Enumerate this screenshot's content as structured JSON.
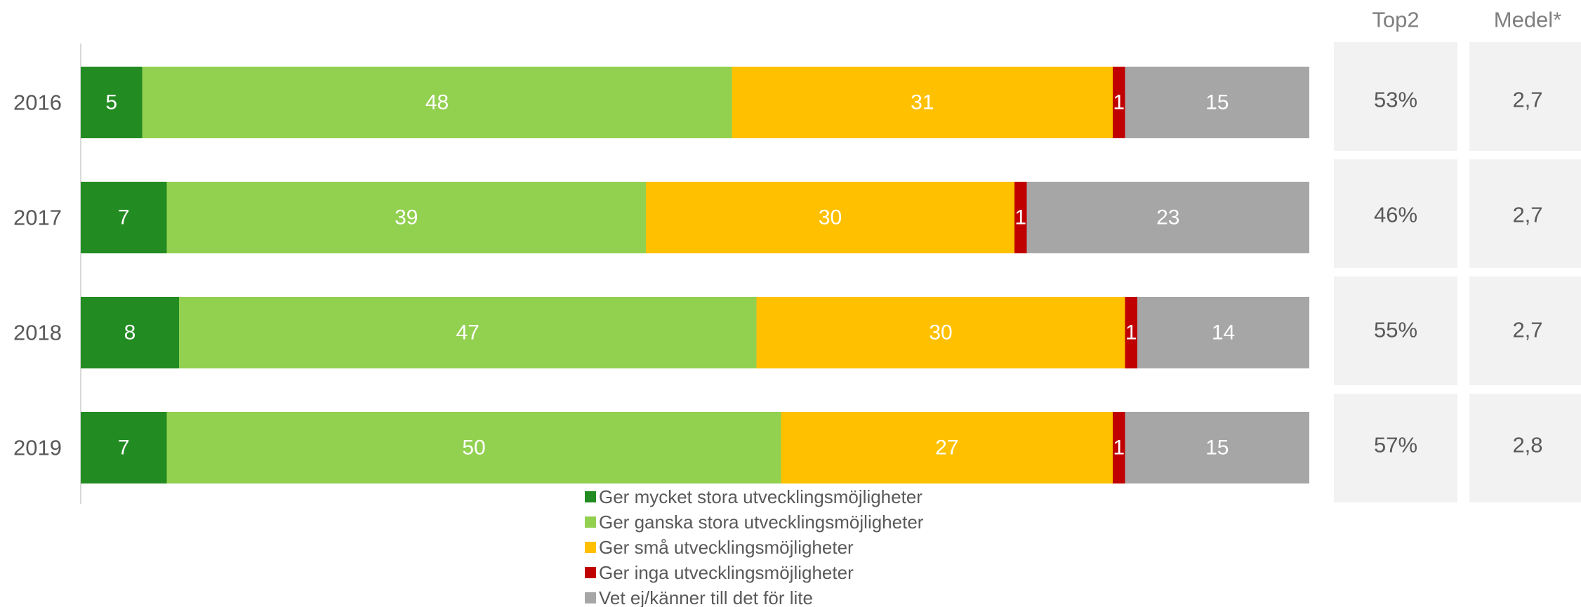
{
  "chart_data": {
    "type": "bar",
    "orientation": "horizontal",
    "stacked": true,
    "xlim": [
      0,
      100
    ],
    "categories": [
      "2016",
      "2017",
      "2018",
      "2019"
    ],
    "series": [
      {
        "name": "Ger mycket stora utvecklingsmöjligheter",
        "color": "#228b22",
        "values": [
          5,
          7,
          8,
          7
        ]
      },
      {
        "name": "Ger ganska stora utvecklingsmöjligheter",
        "color": "#92d050",
        "values": [
          48,
          39,
          47,
          50
        ]
      },
      {
        "name": "Ger små utvecklingsmöjligheter",
        "color": "#ffc000",
        "values": [
          31,
          30,
          30,
          27
        ]
      },
      {
        "name": "Ger inga utvecklingsmöjligheter",
        "color": "#c00000",
        "values": [
          1,
          1,
          1,
          1
        ]
      },
      {
        "name": "Vet ej/känner till det för lite",
        "color": "#a6a6a6",
        "values": [
          15,
          23,
          14,
          15
        ]
      }
    ],
    "side_columns": [
      {
        "header": "Top2",
        "values": [
          "53%",
          "46%",
          "55%",
          "57%"
        ]
      },
      {
        "header": "Medel*",
        "values": [
          "2,7",
          "2,7",
          "2,7",
          "2,8"
        ]
      }
    ],
    "legend_position": "bottom",
    "grid": false
  }
}
